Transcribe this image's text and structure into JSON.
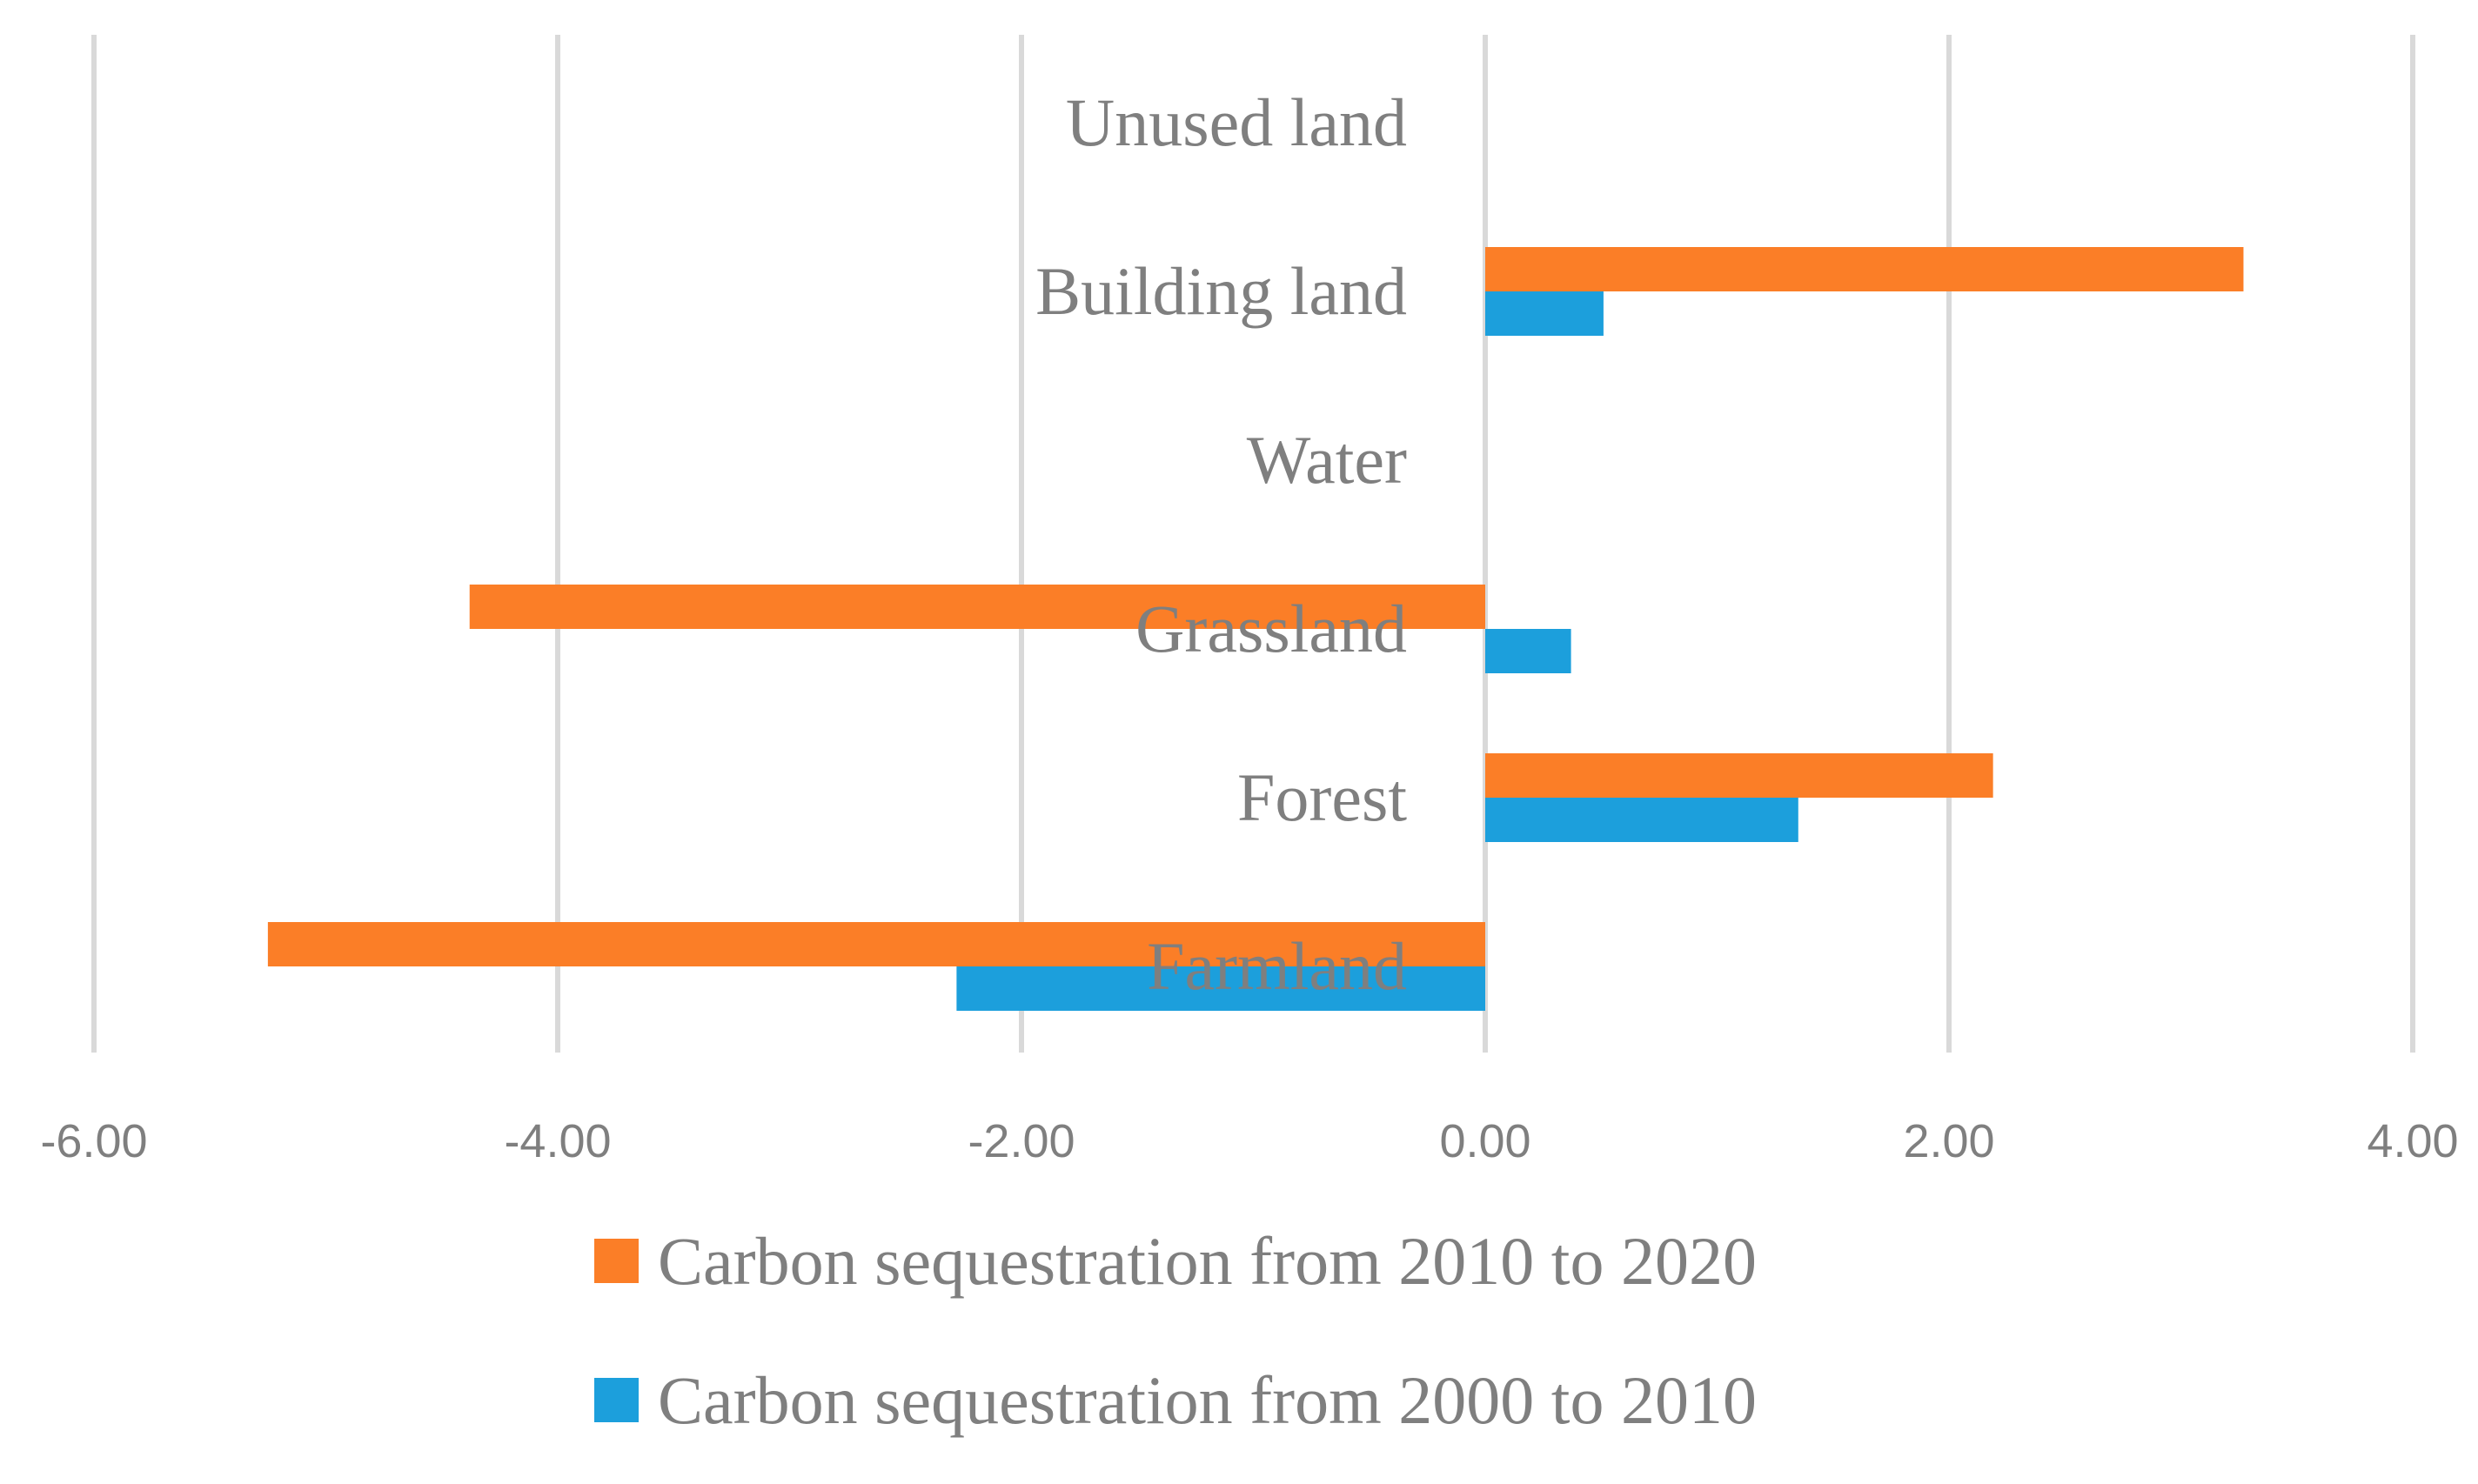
{
  "chart_data": {
    "type": "bar",
    "orientation": "horizontal",
    "categories": [
      "Farmland",
      "Forest",
      "Grassland",
      "Water",
      "Building land",
      "Unused land"
    ],
    "series": [
      {
        "name": "Carbon sequestration from 2010 to 2020",
        "color": "#fb7e27",
        "values": [
          -5.25,
          2.19,
          -4.38,
          0,
          3.27,
          0
        ]
      },
      {
        "name": "Carbon sequestration from 2000 to 2010",
        "color": "#1c9fdc",
        "values": [
          -2.28,
          1.35,
          0.37,
          0,
          0.51,
          0
        ]
      }
    ],
    "x_ticks": [
      "-6.00",
      "-4.00",
      "-2.00",
      "0.00",
      "2.00",
      "4.00"
    ],
    "xlim": [
      -6,
      4
    ],
    "grid": true,
    "legend_position": "bottom",
    "title": "",
    "xlabel": "",
    "ylabel": ""
  }
}
